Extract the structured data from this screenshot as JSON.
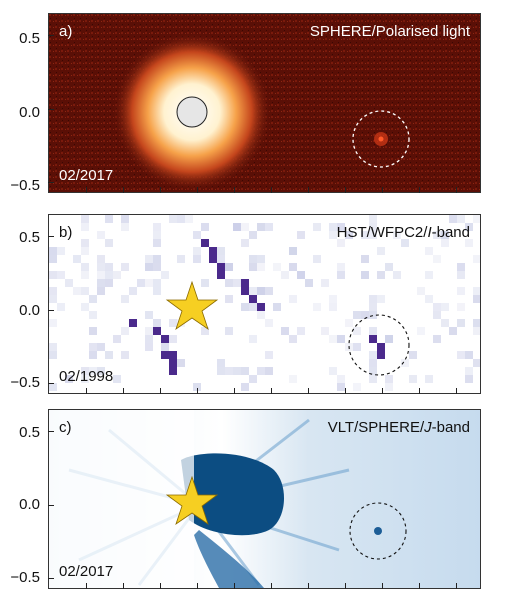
{
  "panels": [
    {
      "letter": "a)",
      "instrument": "SPHERE/Polarised light",
      "band_italic": "",
      "band_suffix": "",
      "date": "02/2017",
      "theme": "red",
      "y_ticks": [
        "0.5",
        "0.0",
        "−0.5"
      ]
    },
    {
      "letter": "b)",
      "instrument": "HST/WFPC2/",
      "band_italic": "I",
      "band_suffix": "-band",
      "date": "02/1998",
      "theme": "purple",
      "y_ticks": [
        "0.5",
        "0.0",
        "−0.5"
      ]
    },
    {
      "letter": "c)",
      "instrument": "VLT/SPHERE/",
      "band_italic": "J",
      "band_suffix": "-band",
      "date": "02/2017",
      "theme": "blue",
      "y_ticks": [
        "0.5",
        "0.0",
        "−0.5"
      ]
    }
  ],
  "colors": {
    "red_bg": "#5a0f06",
    "purple_mark": "#4b2a8c",
    "blue_mark": "#1c5d96",
    "star": "#f6cf22"
  }
}
